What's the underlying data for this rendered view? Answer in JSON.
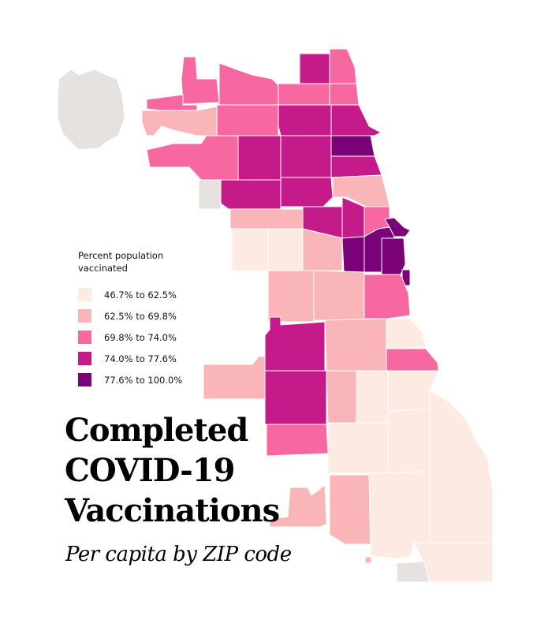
{
  "legend": {
    "title_line1": "Percent population",
    "title_line2": "vaccinated",
    "items": [
      {
        "label": "46.7% to 62.5%",
        "color": "#fdebe3"
      },
      {
        "label": "62.5% to 69.8%",
        "color": "#f9b5b7"
      },
      {
        "label": "69.8% to 74.0%",
        "color": "#f768a1"
      },
      {
        "label": "74.0% to 77.6%",
        "color": "#c51b8a"
      },
      {
        "label": "77.6% to 100.0%",
        "color": "#7a0177"
      }
    ]
  },
  "no_data_color": "#e6e2df",
  "title": {
    "line1": "Completed",
    "line2": "COVID-19",
    "line3": "Vaccinations"
  },
  "subtitle": "Per capita by ZIP code"
}
